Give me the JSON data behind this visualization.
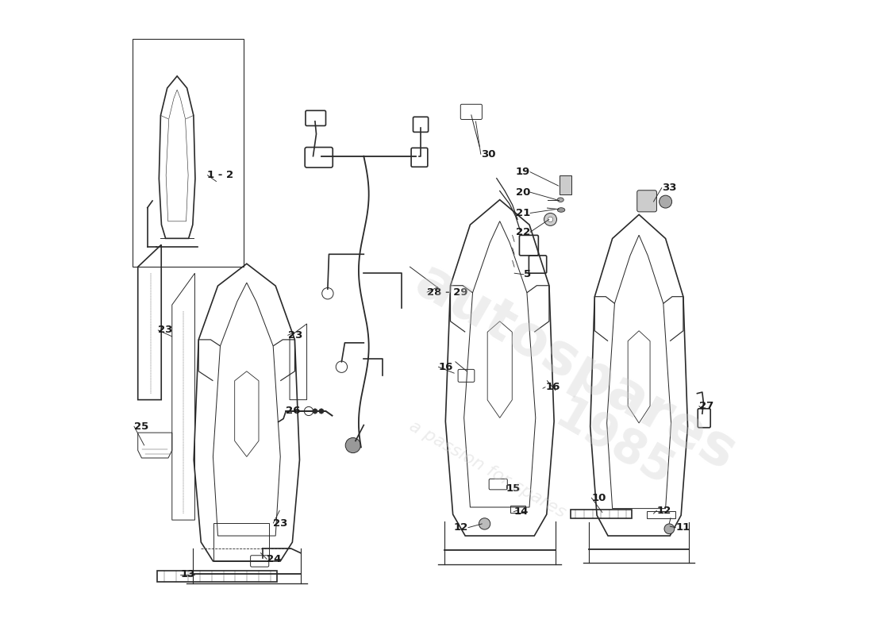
{
  "title": "",
  "background_color": "#ffffff",
  "line_color": "#2a2a2a",
  "label_color": "#1a1a1a",
  "watermark_text1": "autospares",
  "watermark_text2": "1985",
  "watermark_text3": "a passion for spares",
  "watermark_color": "#d0d0d0",
  "fig_width": 11.0,
  "fig_height": 8.0
}
